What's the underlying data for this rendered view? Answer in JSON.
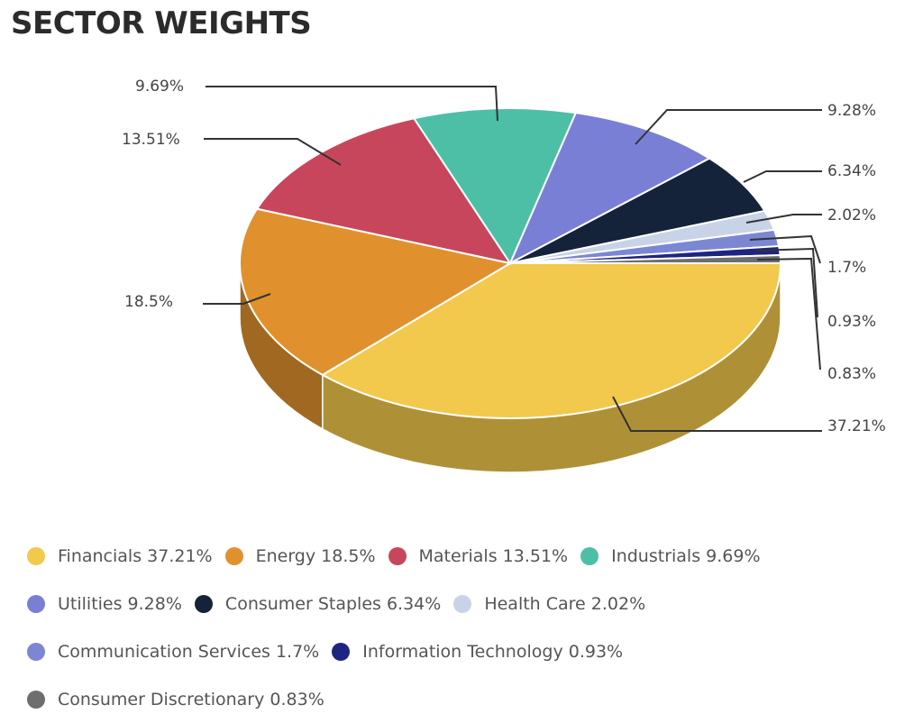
{
  "title": "SECTOR WEIGHTS",
  "chart_data": {
    "type": "pie",
    "title": "SECTOR WEIGHTS",
    "variant": "3d",
    "legend_position": "bottom",
    "slices": [
      {
        "name": "Financials",
        "value": 37.21,
        "label": "37.21%",
        "color": "#F2C94C"
      },
      {
        "name": "Energy",
        "value": 18.5,
        "label": "18.5%",
        "color": "#E0912E"
      },
      {
        "name": "Materials",
        "value": 13.51,
        "label": "13.51%",
        "color": "#C8465C"
      },
      {
        "name": "Industrials",
        "value": 9.69,
        "label": "9.69%",
        "color": "#4DBFA6"
      },
      {
        "name": "Utilities",
        "value": 9.28,
        "label": "9.28%",
        "color": "#7A7FD6"
      },
      {
        "name": "Consumer Staples",
        "value": 6.34,
        "label": "6.34%",
        "color": "#15233A"
      },
      {
        "name": "Health Care",
        "value": 2.02,
        "label": "2.02%",
        "color": "#C9D3E8"
      },
      {
        "name": "Communication Services",
        "value": 1.7,
        "label": "1.7%",
        "color": "#7C87D4"
      },
      {
        "name": "Information Technology",
        "value": 0.93,
        "label": "0.93%",
        "color": "#1E2580"
      },
      {
        "name": "Consumer Discretionary",
        "value": 0.83,
        "label": "0.83%",
        "color": "#6E6E6E"
      }
    ]
  },
  "legend": {
    "rows": [
      [
        {
          "text": "Financials 37.21%",
          "color": "#F2C94C"
        },
        {
          "text": "Energy 18.5%",
          "color": "#E0912E"
        },
        {
          "text": "Materials 13.51%",
          "color": "#C8465C"
        },
        {
          "text": "Industrials 9.69%",
          "color": "#4DBFA6"
        }
      ],
      [
        {
          "text": "Utilities 9.28%",
          "color": "#7A7FD6"
        },
        {
          "text": "Consumer Staples 6.34%",
          "color": "#15233A"
        },
        {
          "text": "Health Care 2.02%",
          "color": "#C9D3E8"
        }
      ],
      [
        {
          "text": "Communication Services 1.7%",
          "color": "#7C87D4"
        },
        {
          "text": "Information Technology 0.93%",
          "color": "#1E2580"
        }
      ],
      [
        {
          "text": "Consumer Discretionary 0.83%",
          "color": "#6E6E6E"
        }
      ]
    ]
  }
}
